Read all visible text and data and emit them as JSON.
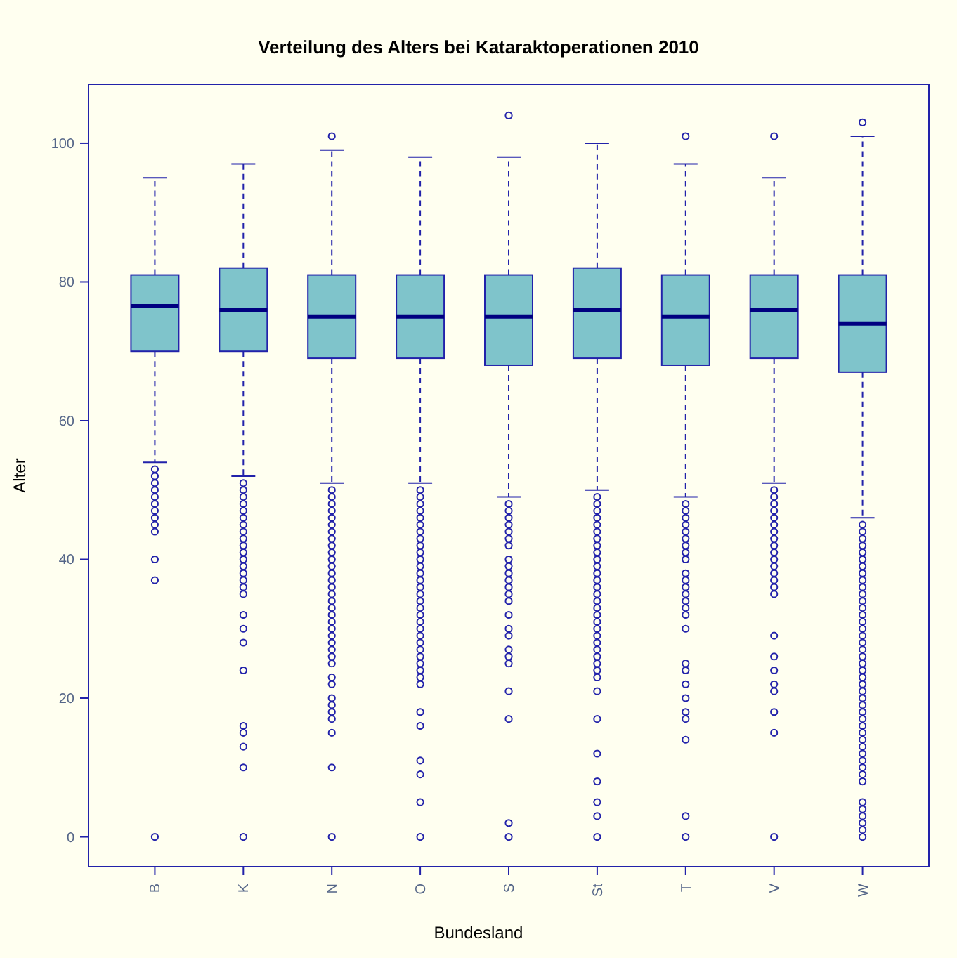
{
  "chart_data": {
    "type": "box",
    "title": "Verteilung des Alters bei Kataraktoperationen 2010",
    "xlabel": "Bundesland",
    "ylabel": "Alter",
    "categories": [
      "B",
      "K",
      "N",
      "O",
      "S",
      "St",
      "T",
      "V",
      "W"
    ],
    "ylim": [
      -4.3,
      108.5
    ],
    "yticks": [
      0,
      20,
      40,
      60,
      80,
      100
    ],
    "grid": false,
    "color": "#7fc4cb",
    "boxes": [
      {
        "low": 54,
        "q1": 70,
        "median": 76.5,
        "q3": 81,
        "high": 95,
        "outliers": [
          53,
          52,
          51,
          50,
          49,
          48,
          47,
          46,
          45,
          44,
          40,
          37,
          0
        ]
      },
      {
        "low": 52,
        "q1": 70,
        "median": 76,
        "q3": 82,
        "high": 97,
        "outliers": [
          51,
          50,
          49,
          48,
          47,
          46,
          45,
          44,
          43,
          42,
          41,
          40,
          39,
          38,
          37,
          36,
          35,
          32,
          30,
          28,
          24,
          16,
          15,
          13,
          10,
          0
        ]
      },
      {
        "low": 51,
        "q1": 69,
        "median": 75,
        "q3": 81,
        "high": 99,
        "outliers": [
          101,
          50,
          49,
          48,
          47,
          46,
          45,
          44,
          43,
          42,
          41,
          40,
          39,
          38,
          37,
          36,
          35,
          34,
          33,
          32,
          31,
          30,
          29,
          28,
          27,
          26,
          25,
          23,
          22,
          20,
          19,
          18,
          17,
          15,
          10,
          0
        ]
      },
      {
        "low": 51,
        "q1": 69,
        "median": 75,
        "q3": 81,
        "high": 98,
        "outliers": [
          50,
          49,
          48,
          47,
          46,
          45,
          44,
          43,
          42,
          41,
          40,
          39,
          38,
          37,
          36,
          35,
          34,
          33,
          32,
          31,
          30,
          29,
          28,
          27,
          26,
          25,
          24,
          23,
          22,
          18,
          16,
          11,
          9,
          5,
          0
        ]
      },
      {
        "low": 49,
        "q1": 68,
        "median": 75,
        "q3": 81,
        "high": 98,
        "outliers": [
          104,
          48,
          47,
          46,
          45,
          44,
          43,
          42,
          40,
          39,
          38,
          37,
          36,
          35,
          34,
          32,
          30,
          29,
          27,
          26,
          25,
          21,
          17,
          2,
          0
        ]
      },
      {
        "low": 50,
        "q1": 69,
        "median": 76,
        "q3": 82,
        "high": 100,
        "outliers": [
          49,
          48,
          47,
          46,
          45,
          44,
          43,
          42,
          41,
          40,
          39,
          38,
          37,
          36,
          35,
          34,
          33,
          32,
          31,
          30,
          29,
          28,
          27,
          26,
          25,
          24,
          23,
          21,
          17,
          12,
          8,
          5,
          3,
          0
        ]
      },
      {
        "low": 49,
        "q1": 68,
        "median": 75,
        "q3": 81,
        "high": 97,
        "outliers": [
          101,
          48,
          47,
          46,
          45,
          44,
          43,
          42,
          41,
          40,
          38,
          37,
          36,
          35,
          34,
          33,
          32,
          30,
          25,
          24,
          22,
          20,
          18,
          17,
          14,
          3,
          0
        ]
      },
      {
        "low": 51,
        "q1": 69,
        "median": 76,
        "q3": 81,
        "high": 95,
        "outliers": [
          101,
          50,
          49,
          48,
          47,
          46,
          45,
          44,
          43,
          42,
          41,
          40,
          39,
          38,
          37,
          36,
          35,
          29,
          26,
          24,
          22,
          21,
          18,
          15,
          0
        ]
      },
      {
        "low": 46,
        "q1": 67,
        "median": 74,
        "q3": 81,
        "high": 101,
        "outliers": [
          103,
          45,
          44,
          43,
          42,
          41,
          40,
          39,
          38,
          37,
          36,
          35,
          34,
          33,
          32,
          31,
          30,
          29,
          28,
          27,
          26,
          25,
          24,
          23,
          22,
          21,
          20,
          19,
          18,
          17,
          16,
          15,
          14,
          13,
          12,
          11,
          10,
          9,
          8,
          5,
          4,
          3,
          2,
          1,
          0
        ]
      }
    ]
  }
}
